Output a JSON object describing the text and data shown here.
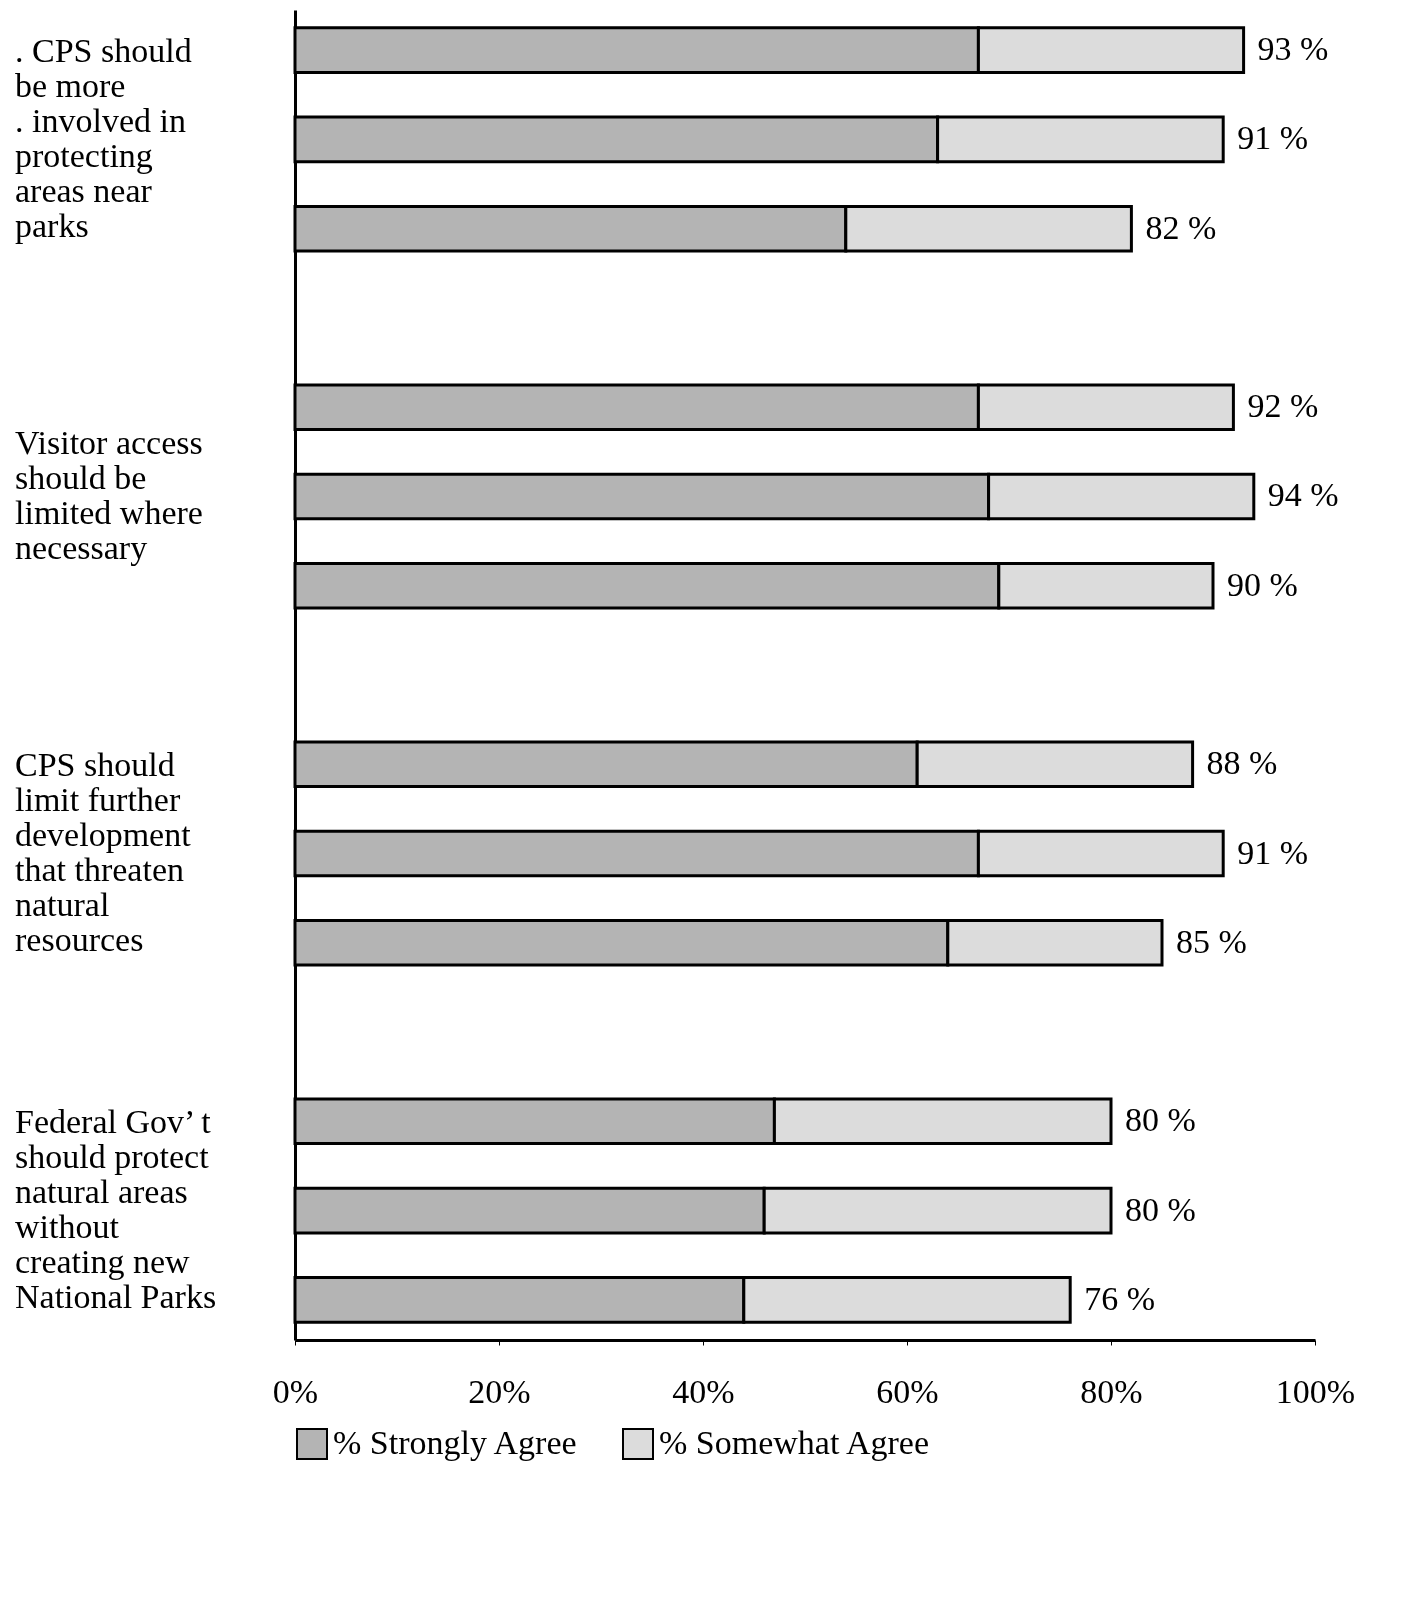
{
  "chart_data": {
    "type": "bar",
    "orientation": "horizontal",
    "stacked": true,
    "categories": [
      null,
      ". CPS should\nbe more\n. involved in\nprotecting\nareas near\nparks",
      null,
      null,
      null,
      "Visitor access\nshould be\nlimited where\nnecessary",
      null,
      null,
      null,
      "CPS should\nlimit further\ndevelopment\nthat threaten\nnatural\nresources",
      null,
      null,
      null,
      "Federal Gov’ t\nshould protect\nnatural areas\nwithout\ncreating new\nNational Parks",
      null
    ],
    "series": [
      {
        "name": "% Strongly Agree",
        "color": "#b4b4b4",
        "values": [
          67,
          63,
          54,
          null,
          67,
          68,
          69,
          null,
          61,
          67,
          64,
          null,
          47,
          46,
          44
        ]
      },
      {
        "name": "% Somewhat Agree",
        "color": "#dcdcdc",
        "values": [
          26,
          28,
          28,
          null,
          25,
          26,
          21,
          null,
          27,
          24,
          21,
          null,
          33,
          34,
          32
        ]
      }
    ],
    "totals": [
      "93 %",
      "91 %",
      "82 %",
      null,
      "92 %",
      "94 %",
      "90 %",
      null,
      "88 %",
      "91 %",
      "85 %",
      null,
      "80 %",
      "80 %",
      "76 %"
    ],
    "xlim": [
      0,
      100
    ],
    "xticks": [
      {
        "value": 0,
        "label": "0%"
      },
      {
        "value": 20,
        "label": "20%"
      },
      {
        "value": 40,
        "label": "40%"
      },
      {
        "value": 60,
        "label": "60%"
      },
      {
        "value": 80,
        "label": "80%"
      },
      {
        "value": 100,
        "label": "100%"
      }
    ],
    "grid": false,
    "legend": "bottom"
  }
}
